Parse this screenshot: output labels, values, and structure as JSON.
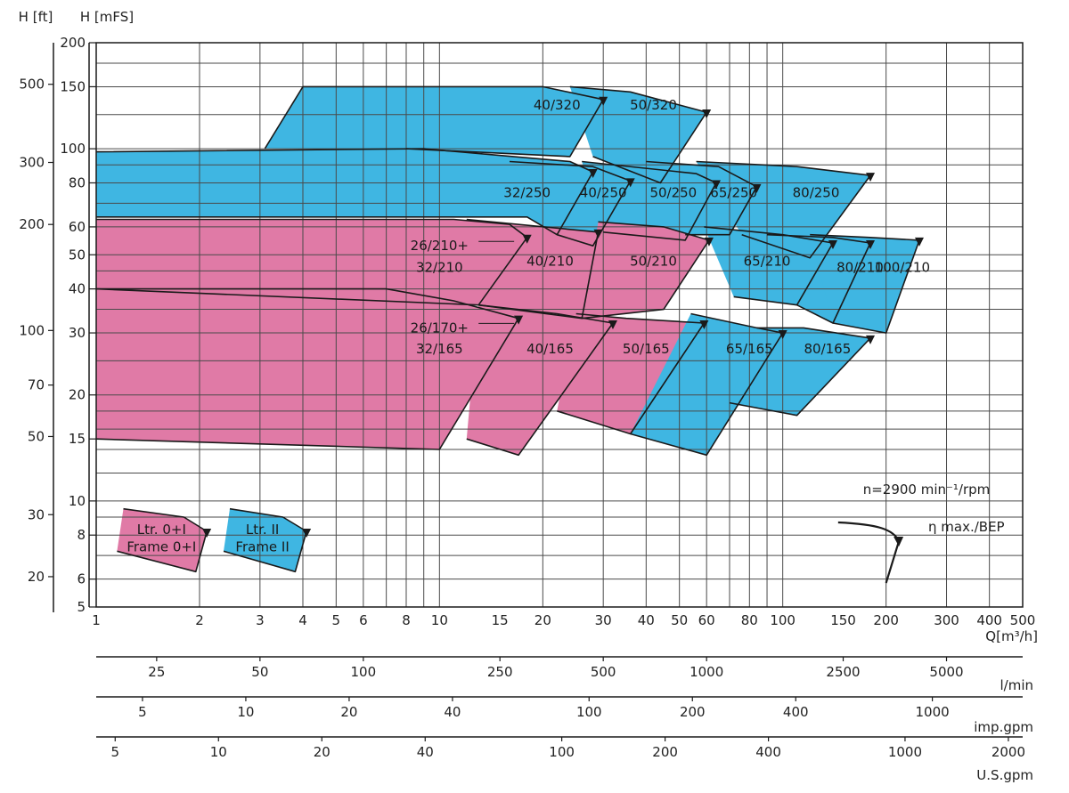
{
  "chart_data": {
    "type": "area",
    "title": "",
    "axis_titles": {
      "ft": "H  [ft]",
      "mfs": "H  [mFS]",
      "q": "Q[m³/h]"
    },
    "scale": "log-log",
    "x_range_m3h": [
      1,
      500
    ],
    "y_range_mfs": [
      5,
      200
    ],
    "grid": true,
    "q_ticks": [
      1,
      2,
      3,
      4,
      5,
      6,
      8,
      10,
      15,
      20,
      30,
      40,
      50,
      60,
      80,
      100,
      150,
      200,
      300,
      400,
      500
    ],
    "h_mfs_ticks": [
      5,
      6,
      8,
      10,
      15,
      20,
      30,
      40,
      50,
      60,
      80,
      100,
      150,
      200
    ],
    "h_ft_ticks": [
      20,
      30,
      50,
      70,
      100,
      200,
      300,
      500
    ],
    "secondary_axes": [
      {
        "unit": "l/min",
        "factor": 16.667,
        "ticks": [
          25,
          50,
          100,
          250,
          500,
          1000,
          2500,
          5000
        ]
      },
      {
        "unit": "imp.gpm",
        "factor": 3.666,
        "ticks": [
          5,
          10,
          20,
          40,
          100,
          200,
          400,
          1000
        ]
      },
      {
        "unit": "U.S.gpm",
        "factor": 4.403,
        "ticks": [
          5,
          10,
          20,
          40,
          100,
          200,
          400,
          1000,
          2000
        ]
      }
    ],
    "colors": {
      "frame_0_I": "#e07aa6",
      "frame_II": "#3fb6e2",
      "outline": "#1a1a1a",
      "grid": "#4a4a4a"
    },
    "series": [
      {
        "name": "40/320",
        "frame": "II",
        "polygon": [
          [
            3.1,
            100
          ],
          [
            4.0,
            150
          ],
          [
            20,
            150
          ],
          [
            30,
            138
          ],
          [
            24,
            95
          ],
          [
            8,
            100
          ]
        ]
      },
      {
        "name": "50/320",
        "frame": "II",
        "polygon": [
          [
            24,
            150
          ],
          [
            36,
            145
          ],
          [
            60,
            127
          ],
          [
            44,
            80
          ],
          [
            28,
            95
          ]
        ]
      },
      {
        "name": "32/250",
        "frame": "II",
        "polygon": [
          [
            1,
            98
          ],
          [
            9,
            100
          ],
          [
            24,
            92
          ],
          [
            28,
            86
          ],
          [
            22,
            57
          ],
          [
            18,
            64
          ],
          [
            1,
            64
          ]
        ]
      },
      {
        "name": "40/250",
        "frame": "II",
        "polygon": [
          [
            16,
            92
          ],
          [
            28,
            89
          ],
          [
            36,
            81
          ],
          [
            28,
            53
          ],
          [
            22,
            57
          ]
        ]
      },
      {
        "name": "50/250",
        "frame": "II",
        "polygon": [
          [
            26,
            92
          ],
          [
            56,
            85
          ],
          [
            64,
            80
          ],
          [
            52,
            55
          ],
          [
            30,
            58
          ]
        ]
      },
      {
        "name": "65/250",
        "frame": "II",
        "polygon": [
          [
            40,
            92
          ],
          [
            65,
            89
          ],
          [
            84,
            78
          ],
          [
            70,
            57
          ],
          [
            52,
            57
          ]
        ]
      },
      {
        "name": "80/250",
        "frame": "II",
        "polygon": [
          [
            56,
            92
          ],
          [
            110,
            89
          ],
          [
            180,
            84
          ],
          [
            120,
            49
          ],
          [
            76,
            57
          ]
        ]
      },
      {
        "name": "26/210+32/210",
        "frame": "0+I",
        "polygon": [
          [
            1,
            63
          ],
          [
            11,
            63
          ],
          [
            16,
            61
          ],
          [
            18,
            56
          ],
          [
            13,
            36
          ],
          [
            1,
            40
          ]
        ]
      },
      {
        "name": "40/210",
        "frame": "0+I",
        "polygon": [
          [
            12,
            63
          ],
          [
            29,
            58
          ],
          [
            26,
            33
          ],
          [
            13,
            36
          ]
        ]
      },
      {
        "name": "50/210",
        "frame": "0+I",
        "polygon": [
          [
            29,
            62
          ],
          [
            45,
            60
          ],
          [
            61,
            55
          ],
          [
            45,
            35
          ],
          [
            26,
            33
          ]
        ]
      },
      {
        "name": "65/210",
        "frame": "II",
        "polygon": [
          [
            59,
            60
          ],
          [
            100,
            57
          ],
          [
            140,
            54
          ],
          [
            110,
            36
          ],
          [
            72,
            38
          ]
        ]
      },
      {
        "name": "80/210",
        "frame": "II",
        "polygon": [
          [
            90,
            57
          ],
          [
            140,
            56
          ],
          [
            180,
            54
          ],
          [
            140,
            32
          ],
          [
            110,
            36
          ]
        ]
      },
      {
        "name": "100/210",
        "frame": "II",
        "polygon": [
          [
            120,
            57
          ],
          [
            180,
            56
          ],
          [
            250,
            55
          ],
          [
            200,
            30
          ],
          [
            140,
            32
          ]
        ]
      },
      {
        "name": "26/170+32/165",
        "frame": "0+I",
        "polygon": [
          [
            1,
            40
          ],
          [
            7,
            40
          ],
          [
            11,
            37
          ],
          [
            17,
            33
          ],
          [
            10,
            14
          ],
          [
            1,
            15
          ]
        ]
      },
      {
        "name": "40/165",
        "frame": "0+I",
        "polygon": [
          [
            13,
            36
          ],
          [
            22,
            34
          ],
          [
            32,
            32
          ],
          [
            17,
            13.5
          ],
          [
            12,
            15
          ]
        ]
      },
      {
        "name": "50/165",
        "frame": "0+I",
        "polygon": [
          [
            25,
            34
          ],
          [
            35,
            33
          ],
          [
            59,
            32
          ],
          [
            36,
            15.5
          ],
          [
            22,
            18
          ]
        ]
      },
      {
        "name": "65/165",
        "frame": "II",
        "polygon": [
          [
            54,
            34
          ],
          [
            84,
            31
          ],
          [
            100,
            30
          ],
          [
            60,
            13.5
          ],
          [
            36,
            15.5
          ]
        ]
      },
      {
        "name": "80/165",
        "frame": "II",
        "polygon": [
          [
            84,
            31
          ],
          [
            115,
            31
          ],
          [
            180,
            29
          ],
          [
            110,
            17.5
          ],
          [
            70,
            19
          ]
        ]
      },
      {
        "name": "Ltr. 0+I / Frame 0+I",
        "frame": "0+I",
        "polygon": [
          [
            1.2,
            9.5
          ],
          [
            1.8,
            9
          ],
          [
            2.1,
            8.2
          ],
          [
            1.95,
            6.3
          ],
          [
            1.15,
            7.2
          ]
        ]
      },
      {
        "name": "Ltr. II / Frame II",
        "frame": "II",
        "polygon": [
          [
            2.45,
            9.5
          ],
          [
            3.5,
            9
          ],
          [
            4.1,
            8.2
          ],
          [
            3.8,
            6.3
          ],
          [
            2.35,
            7.2
          ]
        ]
      }
    ],
    "region_labels": [
      {
        "text": "40/320",
        "q": 22,
        "h": 133
      },
      {
        "text": "50/320",
        "q": 42,
        "h": 133
      },
      {
        "text": "32/250",
        "q": 18,
        "h": 75
      },
      {
        "text": "40/250",
        "q": 30,
        "h": 75
      },
      {
        "text": "50/250",
        "q": 48,
        "h": 75
      },
      {
        "text": "65/250",
        "q": 72,
        "h": 75
      },
      {
        "text": "80/250",
        "q": 125,
        "h": 75
      },
      {
        "text": "26/210+",
        "q": 10,
        "h": 53
      },
      {
        "text": "32/210",
        "q": 10,
        "h": 46
      },
      {
        "text": "40/210",
        "q": 21,
        "h": 48
      },
      {
        "text": "50/210",
        "q": 42,
        "h": 48
      },
      {
        "text": "65/210",
        "q": 90,
        "h": 48
      },
      {
        "text": "80/210",
        "q": 168,
        "h": 46
      },
      {
        "text": "100/210",
        "q": 223,
        "h": 46
      },
      {
        "text": "26/170+",
        "q": 10,
        "h": 31
      },
      {
        "text": "32/165",
        "q": 10,
        "h": 27
      },
      {
        "text": "40/165",
        "q": 21,
        "h": 27
      },
      {
        "text": "50/165",
        "q": 40,
        "h": 27
      },
      {
        "text": "65/165",
        "q": 80,
        "h": 27
      },
      {
        "text": "80/165",
        "q": 135,
        "h": 27
      },
      {
        "text": "Ltr.  0+I",
        "q": 1.55,
        "h": 8.3
      },
      {
        "text": "Frame 0+I",
        "q": 1.55,
        "h": 7.4
      },
      {
        "text": "Ltr.  II",
        "q": 3.05,
        "h": 8.3
      },
      {
        "text": "Frame  II",
        "q": 3.05,
        "h": 7.4
      }
    ],
    "speed_note": "n=2900  min⁻¹/rpm",
    "efficiency_legend": "η max./BEP"
  }
}
